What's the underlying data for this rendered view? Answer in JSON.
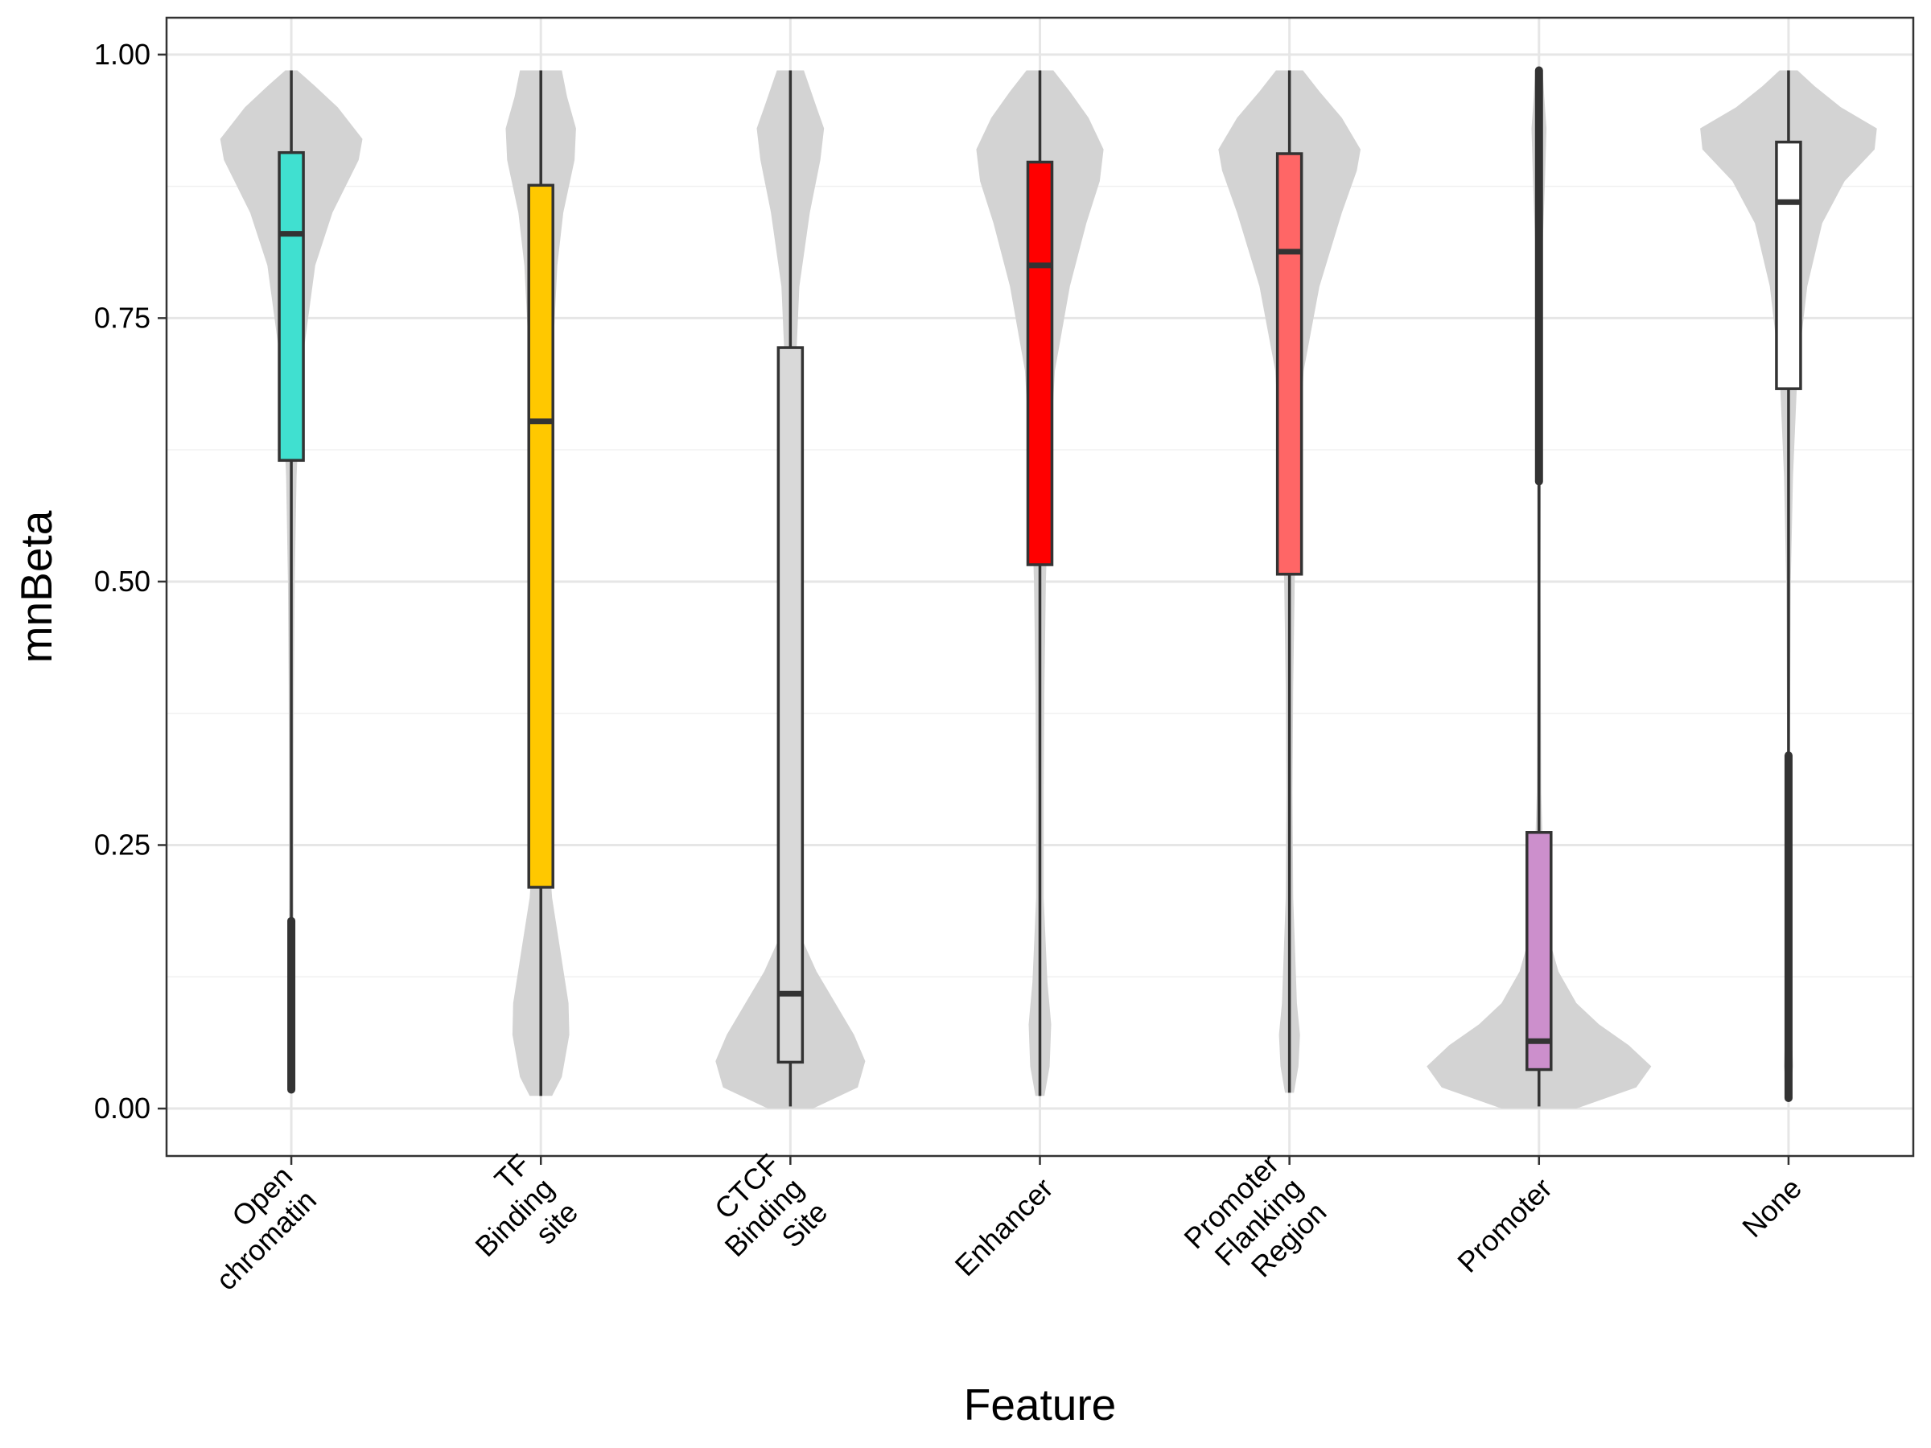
{
  "chart_data": {
    "type": "violin",
    "xlabel": "Feature",
    "ylabel": "mnBeta",
    "ylim": [
      -0.045,
      1.035
    ],
    "yticks": [
      0.0,
      0.25,
      0.5,
      0.75,
      1.0
    ],
    "ytick_labels": [
      "0.00",
      "0.25",
      "0.50",
      "0.75",
      "1.00"
    ],
    "grid": true,
    "legend": "none",
    "violin_color": "#d3d3d3",
    "categories": [
      {
        "label": [
          "Open",
          "chromatin"
        ],
        "box_color": "#40e0d0",
        "q1": 0.615,
        "median": 0.83,
        "q3": 0.907,
        "whisker_low": 0.18,
        "whisker_high": 0.985,
        "outliers": [
          [
            0.018,
            0.178
          ]
        ],
        "violin_min": 0.018,
        "violin_max": 0.985,
        "density": [
          [
            0.018,
            0.02
          ],
          [
            0.05,
            0.035
          ],
          [
            0.1,
            0.04
          ],
          [
            0.15,
            0.035
          ],
          [
            0.2,
            0.03
          ],
          [
            0.3,
            0.03
          ],
          [
            0.4,
            0.035
          ],
          [
            0.5,
            0.045
          ],
          [
            0.6,
            0.07
          ],
          [
            0.7,
            0.13
          ],
          [
            0.8,
            0.32
          ],
          [
            0.85,
            0.55
          ],
          [
            0.9,
            0.9
          ],
          [
            0.92,
            0.95
          ],
          [
            0.95,
            0.62
          ],
          [
            0.97,
            0.32
          ],
          [
            0.985,
            0.08
          ]
        ]
      },
      {
        "label": [
          "TF",
          "Binding",
          "site"
        ],
        "box_color": "#ffc800",
        "q1": 0.21,
        "median": 0.652,
        "q3": 0.876,
        "whisker_low": 0.012,
        "whisker_high": 0.985,
        "outliers": [],
        "violin_min": 0.012,
        "violin_max": 0.985,
        "density": [
          [
            0.012,
            0.15
          ],
          [
            0.03,
            0.28
          ],
          [
            0.07,
            0.38
          ],
          [
            0.1,
            0.37
          ],
          [
            0.15,
            0.26
          ],
          [
            0.2,
            0.15
          ],
          [
            0.25,
            0.1
          ],
          [
            0.3,
            0.08
          ],
          [
            0.4,
            0.08
          ],
          [
            0.5,
            0.09
          ],
          [
            0.6,
            0.12
          ],
          [
            0.7,
            0.15
          ],
          [
            0.8,
            0.22
          ],
          [
            0.85,
            0.3
          ],
          [
            0.9,
            0.45
          ],
          [
            0.93,
            0.47
          ],
          [
            0.96,
            0.35
          ],
          [
            0.985,
            0.28
          ]
        ]
      },
      {
        "label": [
          "CTCF",
          "Binding",
          "Site"
        ],
        "box_color": "#d9d9d9",
        "q1": 0.044,
        "median": 0.109,
        "q3": 0.722,
        "whisker_low": 0.002,
        "whisker_high": 0.985,
        "outliers": [],
        "violin_min": 0.0,
        "violin_max": 0.985,
        "density": [
          [
            0.0,
            0.3
          ],
          [
            0.02,
            0.9
          ],
          [
            0.045,
            1.0
          ],
          [
            0.07,
            0.85
          ],
          [
            0.1,
            0.6
          ],
          [
            0.13,
            0.35
          ],
          [
            0.16,
            0.16
          ],
          [
            0.2,
            0.07
          ],
          [
            0.3,
            0.03
          ],
          [
            0.5,
            0.03
          ],
          [
            0.7,
            0.07
          ],
          [
            0.78,
            0.12
          ],
          [
            0.85,
            0.26
          ],
          [
            0.9,
            0.4
          ],
          [
            0.93,
            0.45
          ],
          [
            0.95,
            0.35
          ],
          [
            0.985,
            0.18
          ]
        ]
      },
      {
        "label": [
          "Enhancer"
        ],
        "box_color": "#ff0000",
        "q1": 0.516,
        "median": 0.8,
        "q3": 0.898,
        "whisker_low": 0.012,
        "whisker_high": 0.985,
        "outliers": [],
        "violin_min": 0.012,
        "violin_max": 0.985,
        "density": [
          [
            0.012,
            0.06
          ],
          [
            0.04,
            0.13
          ],
          [
            0.08,
            0.15
          ],
          [
            0.12,
            0.1
          ],
          [
            0.2,
            0.05
          ],
          [
            0.3,
            0.05
          ],
          [
            0.4,
            0.06
          ],
          [
            0.5,
            0.08
          ],
          [
            0.6,
            0.12
          ],
          [
            0.7,
            0.2
          ],
          [
            0.78,
            0.4
          ],
          [
            0.84,
            0.62
          ],
          [
            0.88,
            0.8
          ],
          [
            0.91,
            0.85
          ],
          [
            0.94,
            0.65
          ],
          [
            0.965,
            0.4
          ],
          [
            0.985,
            0.18
          ]
        ]
      },
      {
        "label": [
          "Promoter",
          "Flanking",
          "Region"
        ],
        "box_color": "#ff6666",
        "q1": 0.507,
        "median": 0.813,
        "q3": 0.906,
        "whisker_low": 0.015,
        "whisker_high": 0.985,
        "outliers": [],
        "violin_min": 0.015,
        "violin_max": 0.985,
        "density": [
          [
            0.015,
            0.06
          ],
          [
            0.04,
            0.12
          ],
          [
            0.07,
            0.14
          ],
          [
            0.1,
            0.1
          ],
          [
            0.2,
            0.05
          ],
          [
            0.3,
            0.04
          ],
          [
            0.4,
            0.05
          ],
          [
            0.5,
            0.07
          ],
          [
            0.6,
            0.11
          ],
          [
            0.7,
            0.19
          ],
          [
            0.78,
            0.4
          ],
          [
            0.85,
            0.7
          ],
          [
            0.89,
            0.9
          ],
          [
            0.91,
            0.95
          ],
          [
            0.94,
            0.7
          ],
          [
            0.965,
            0.4
          ],
          [
            0.985,
            0.18
          ]
        ]
      },
      {
        "label": [
          "Promoter"
        ],
        "box_color": "#cc8fcc",
        "q1": 0.037,
        "median": 0.064,
        "q3": 0.262,
        "whisker_low": 0.002,
        "whisker_high": 0.595,
        "outliers": [
          [
            0.595,
            0.985
          ]
        ],
        "violin_min": 0.0,
        "violin_max": 0.985,
        "density": [
          [
            0.0,
            0.5
          ],
          [
            0.02,
            1.3
          ],
          [
            0.04,
            1.5
          ],
          [
            0.06,
            1.2
          ],
          [
            0.08,
            0.8
          ],
          [
            0.1,
            0.5
          ],
          [
            0.13,
            0.26
          ],
          [
            0.16,
            0.14
          ],
          [
            0.2,
            0.07
          ],
          [
            0.3,
            0.03
          ],
          [
            0.5,
            0.02
          ],
          [
            0.7,
            0.03
          ],
          [
            0.8,
            0.04
          ],
          [
            0.88,
            0.08
          ],
          [
            0.93,
            0.1
          ],
          [
            0.96,
            0.07
          ],
          [
            0.985,
            0.05
          ]
        ]
      },
      {
        "label": [
          "None"
        ],
        "box_color": "#ffffff",
        "q1": 0.683,
        "median": 0.86,
        "q3": 0.917,
        "whisker_low": 0.335,
        "whisker_high": 0.985,
        "outliers": [
          [
            0.01,
            0.335
          ]
        ],
        "violin_min": 0.01,
        "violin_max": 0.985,
        "density": [
          [
            0.01,
            0.02
          ],
          [
            0.04,
            0.06
          ],
          [
            0.08,
            0.04
          ],
          [
            0.15,
            0.02
          ],
          [
            0.3,
            0.015
          ],
          [
            0.5,
            0.03
          ],
          [
            0.6,
            0.06
          ],
          [
            0.7,
            0.12
          ],
          [
            0.78,
            0.25
          ],
          [
            0.84,
            0.45
          ],
          [
            0.88,
            0.75
          ],
          [
            0.91,
            1.15
          ],
          [
            0.93,
            1.18
          ],
          [
            0.95,
            0.7
          ],
          [
            0.97,
            0.35
          ],
          [
            0.985,
            0.12
          ]
        ]
      }
    ]
  }
}
